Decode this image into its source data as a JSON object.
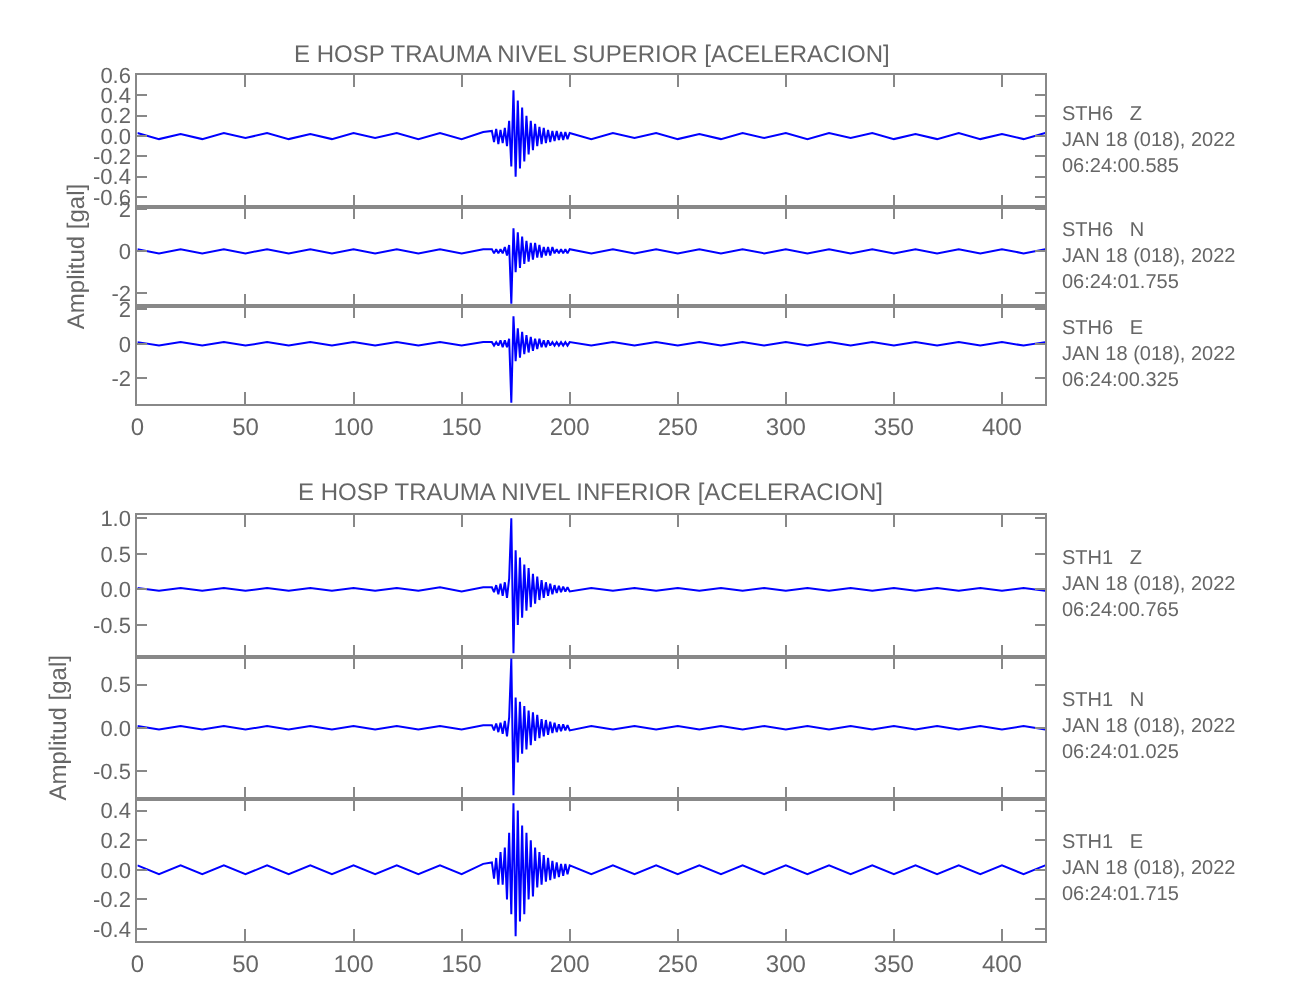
{
  "chart_data": [
    {
      "type": "line",
      "title": "E HOSP TRAUMA NIVEL SUPERIOR [ACELERACION]",
      "color": "#0000ff",
      "marker": "none",
      "line_style": "solid",
      "grid": false,
      "tick_labels": "y",
      "annotations": [
        "STH6   Z\nJAN 18 (018), 2022\n06:24:00.585"
      ],
      "xlim": [
        0,
        420
      ],
      "xticks": [
        0,
        50,
        100,
        150,
        200,
        250,
        300,
        350,
        400
      ],
      "ylim": [
        -0.7,
        0.6
      ],
      "yticks": [
        {
          "value": -0.6,
          "label": "-0.6"
        },
        {
          "value": -0.4,
          "label": "-0.4"
        },
        {
          "value": -0.2,
          "label": "-0.2"
        },
        {
          "value": 0,
          "label": "0.0"
        },
        {
          "value": 0.2,
          "label": "0.2"
        },
        {
          "value": 0.4,
          "label": "0.4"
        },
        {
          "value": 0.6,
          "label": "0.6"
        }
      ],
      "x": [
        0,
        10,
        20,
        30,
        40,
        50,
        60,
        70,
        80,
        90,
        100,
        110,
        120,
        130,
        140,
        150,
        160,
        164,
        165,
        166,
        167,
        168,
        169,
        170,
        171,
        172,
        173,
        174,
        175,
        176,
        177,
        178,
        179,
        180,
        181,
        182,
        183,
        184,
        185,
        186,
        187,
        188,
        189,
        190,
        191,
        192,
        193,
        194,
        195,
        196,
        197,
        198,
        199,
        200,
        210,
        220,
        230,
        240,
        250,
        260,
        270,
        280,
        290,
        300,
        310,
        320,
        330,
        340,
        350,
        360,
        370,
        380,
        390,
        400,
        410,
        420
      ],
      "values": [
        0.03,
        -0.03,
        0.02,
        -0.03,
        0.03,
        -0.02,
        0.03,
        -0.03,
        0.02,
        -0.03,
        0.03,
        -0.02,
        0.03,
        -0.03,
        0.03,
        -0.03,
        0.04,
        0.05,
        -0.06,
        0.07,
        -0.08,
        0.06,
        -0.07,
        0.08,
        -0.1,
        0.15,
        -0.3,
        0.45,
        -0.4,
        0.35,
        -0.32,
        0.28,
        -0.25,
        0.2,
        -0.18,
        0.15,
        -0.14,
        0.12,
        -0.1,
        0.09,
        -0.08,
        0.08,
        -0.07,
        0.06,
        -0.06,
        0.05,
        -0.05,
        0.05,
        -0.04,
        0.04,
        -0.04,
        0.04,
        -0.03,
        0.03,
        -0.03,
        0.03,
        -0.02,
        0.03,
        -0.03,
        0.02,
        -0.03,
        0.03,
        -0.02,
        0.03,
        -0.03,
        0.03,
        -0.02,
        0.03,
        -0.03,
        0.02,
        -0.03,
        0.03,
        -0.03,
        0.02,
        -0.03,
        0.03
      ]
    },
    {
      "type": "line",
      "ylabel": "Amplitud [gal]",
      "color": "#0000ff",
      "marker": "none",
      "line_style": "solid",
      "grid": false,
      "tick_labels": "y",
      "annotations": [
        "STH6   N\nJAN 18 (018), 2022\n06:24:01.755"
      ],
      "xlim": [
        0,
        420
      ],
      "xticks": [
        0,
        50,
        100,
        150,
        200,
        250,
        300,
        350,
        400
      ],
      "ylim": [
        -2.6,
        2.1
      ],
      "yticks": [
        -2,
        0,
        2
      ],
      "x": [
        0,
        10,
        20,
        30,
        40,
        50,
        60,
        70,
        80,
        90,
        100,
        110,
        120,
        130,
        140,
        150,
        160,
        164,
        165,
        166,
        167,
        168,
        169,
        170,
        171,
        172,
        173,
        174,
        175,
        176,
        177,
        178,
        179,
        180,
        181,
        182,
        183,
        184,
        185,
        186,
        187,
        188,
        189,
        190,
        191,
        192,
        193,
        194,
        195,
        196,
        197,
        198,
        199,
        200,
        210,
        220,
        230,
        240,
        250,
        260,
        270,
        280,
        290,
        300,
        310,
        320,
        330,
        340,
        350,
        360,
        370,
        380,
        390,
        400,
        410,
        420
      ],
      "values": [
        0.1,
        -0.1,
        0.1,
        -0.1,
        0.1,
        -0.1,
        0.1,
        -0.1,
        0.1,
        -0.1,
        0.1,
        -0.1,
        0.1,
        -0.1,
        0.1,
        -0.1,
        0.1,
        0.1,
        -0.1,
        0.1,
        -0.1,
        0.1,
        -0.1,
        0.2,
        -0.2,
        0.3,
        -2.5,
        1.1,
        -1.0,
        0.9,
        -0.8,
        0.7,
        -0.6,
        0.5,
        -0.5,
        0.4,
        -0.4,
        0.4,
        -0.3,
        0.3,
        -0.3,
        0.2,
        -0.2,
        0.2,
        -0.2,
        0.2,
        -0.1,
        0.1,
        -0.1,
        0.1,
        -0.1,
        0.1,
        -0.1,
        0.1,
        -0.1,
        0.1,
        -0.1,
        0.1,
        -0.1,
        0.1,
        -0.1,
        0.1,
        -0.1,
        0.1,
        -0.1,
        0.1,
        -0.1,
        0.1,
        -0.1,
        0.1,
        -0.1,
        0.1,
        -0.1,
        0.1,
        -0.1,
        0.1
      ]
    },
    {
      "type": "line",
      "color": "#0000ff",
      "marker": "none",
      "line_style": "solid",
      "grid": false,
      "annotations": [
        "STH6   E\nJAN 18 (018), 2022\n06:24:00.325"
      ],
      "xlim": [
        0,
        420
      ],
      "xticks": [
        0,
        50,
        100,
        150,
        200,
        250,
        300,
        350,
        400
      ],
      "ylim": [
        -3.5,
        2.2
      ],
      "yticks": [
        -2,
        0,
        2
      ],
      "x": [
        0,
        10,
        20,
        30,
        40,
        50,
        60,
        70,
        80,
        90,
        100,
        110,
        120,
        130,
        140,
        150,
        160,
        164,
        165,
        166,
        167,
        168,
        169,
        170,
        171,
        172,
        173,
        174,
        175,
        176,
        177,
        178,
        179,
        180,
        181,
        182,
        183,
        184,
        185,
        186,
        187,
        188,
        189,
        190,
        191,
        192,
        193,
        194,
        195,
        196,
        197,
        198,
        199,
        200,
        210,
        220,
        230,
        240,
        250,
        260,
        270,
        280,
        290,
        300,
        310,
        320,
        330,
        340,
        350,
        360,
        370,
        380,
        390,
        400,
        410,
        420
      ],
      "values": [
        0.1,
        -0.1,
        0.1,
        -0.1,
        0.1,
        -0.1,
        0.1,
        -0.1,
        0.1,
        -0.1,
        0.1,
        -0.1,
        0.1,
        -0.1,
        0.1,
        -0.1,
        0.1,
        0.1,
        -0.1,
        0.1,
        -0.1,
        0.2,
        -0.2,
        0.2,
        -0.2,
        0.3,
        -3.4,
        1.6,
        -1.0,
        0.9,
        -0.8,
        0.7,
        -0.6,
        0.5,
        -0.5,
        0.4,
        -0.4,
        0.3,
        -0.3,
        0.3,
        -0.2,
        0.2,
        -0.2,
        0.2,
        -0.1,
        0.1,
        -0.1,
        0.1,
        -0.1,
        0.1,
        -0.1,
        0.1,
        -0.1,
        0.1,
        -0.1,
        0.1,
        -0.1,
        0.1,
        -0.1,
        0.1,
        -0.1,
        0.1,
        -0.1,
        0.1,
        -0.1,
        0.1,
        -0.1,
        0.1,
        -0.1,
        0.1,
        -0.1,
        0.1,
        -0.1,
        0.1,
        -0.1,
        0.1
      ]
    },
    {
      "type": "line",
      "title": "E HOSP TRAUMA NIVEL INFERIOR [ACELERACION]",
      "color": "#0000ff",
      "marker": "none",
      "line_style": "solid",
      "grid": false,
      "tick_labels": "y",
      "annotations": [
        "STH1   Z\nJAN 18 (018), 2022\n06:24:00.765"
      ],
      "xlim": [
        0,
        420
      ],
      "xticks": [
        0,
        50,
        100,
        150,
        200,
        250,
        300,
        350,
        400
      ],
      "ylim": [
        -0.95,
        1.05
      ],
      "yticks": [
        -0.5,
        {
          "value": 0,
          "label": "0.0"
        },
        0.5,
        {
          "value": 1,
          "label": "1.0"
        }
      ],
      "x": [
        0,
        10,
        20,
        30,
        40,
        50,
        60,
        70,
        80,
        90,
        100,
        110,
        120,
        130,
        140,
        150,
        160,
        164,
        165,
        166,
        167,
        168,
        169,
        170,
        171,
        172,
        173,
        174,
        175,
        176,
        177,
        178,
        179,
        180,
        181,
        182,
        183,
        184,
        185,
        186,
        187,
        188,
        189,
        190,
        191,
        192,
        193,
        194,
        195,
        196,
        197,
        198,
        199,
        200,
        210,
        220,
        230,
        240,
        250,
        260,
        270,
        280,
        290,
        300,
        310,
        320,
        330,
        340,
        350,
        360,
        370,
        380,
        390,
        400,
        410,
        420
      ],
      "values": [
        0.02,
        -0.02,
        0.02,
        -0.02,
        0.02,
        -0.02,
        0.02,
        -0.02,
        0.02,
        -0.02,
        0.02,
        -0.02,
        0.02,
        -0.02,
        0.03,
        -0.03,
        0.03,
        0.03,
        -0.04,
        0.06,
        -0.07,
        0.08,
        -0.09,
        0.1,
        -0.12,
        0.15,
        1.0,
        -0.9,
        0.55,
        -0.5,
        0.45,
        -0.4,
        0.35,
        -0.3,
        0.3,
        -0.25,
        0.22,
        -0.2,
        0.18,
        -0.15,
        0.13,
        -0.12,
        0.1,
        -0.09,
        0.08,
        -0.07,
        0.06,
        -0.05,
        0.05,
        -0.04,
        0.04,
        -0.03,
        0.03,
        -0.03,
        0.02,
        -0.02,
        0.02,
        -0.02,
        0.02,
        -0.02,
        0.02,
        -0.02,
        0.02,
        -0.02,
        0.02,
        -0.02,
        0.02,
        -0.02,
        0.02,
        -0.02,
        0.02,
        -0.02,
        0.02,
        -0.02,
        0.02,
        -0.02
      ]
    },
    {
      "type": "line",
      "ylabel": "Amplitud [gal]",
      "color": "#0000ff",
      "marker": "none",
      "line_style": "solid",
      "grid": false,
      "tick_labels": "y",
      "annotations": [
        "STH1   N\nJAN 18 (018), 2022\n06:24:01.025"
      ],
      "xlim": [
        0,
        420
      ],
      "xticks": [
        0,
        50,
        100,
        150,
        200,
        250,
        300,
        350,
        400
      ],
      "ylim": [
        -0.82,
        0.82
      ],
      "yticks": [
        -0.5,
        {
          "value": 0,
          "label": "0.0"
        },
        0.5
      ],
      "x": [
        0,
        10,
        20,
        30,
        40,
        50,
        60,
        70,
        80,
        90,
        100,
        110,
        120,
        130,
        140,
        150,
        160,
        164,
        165,
        166,
        167,
        168,
        169,
        170,
        171,
        172,
        173,
        174,
        175,
        176,
        177,
        178,
        179,
        180,
        181,
        182,
        183,
        184,
        185,
        186,
        187,
        188,
        189,
        190,
        191,
        192,
        193,
        194,
        195,
        196,
        197,
        198,
        199,
        200,
        210,
        220,
        230,
        240,
        250,
        260,
        270,
        280,
        290,
        300,
        310,
        320,
        330,
        340,
        350,
        360,
        370,
        380,
        390,
        400,
        410,
        420
      ],
      "values": [
        0.02,
        -0.02,
        0.02,
        -0.02,
        0.02,
        -0.02,
        0.02,
        -0.02,
        0.02,
        -0.02,
        0.02,
        -0.02,
        0.02,
        -0.02,
        0.02,
        -0.02,
        0.03,
        0.03,
        -0.03,
        0.05,
        -0.05,
        0.06,
        -0.07,
        0.08,
        -0.1,
        0.12,
        0.8,
        -0.78,
        0.35,
        -0.4,
        0.3,
        -0.3,
        0.25,
        -0.25,
        0.2,
        -0.2,
        0.18,
        -0.15,
        0.15,
        -0.12,
        0.1,
        -0.1,
        0.09,
        -0.08,
        0.07,
        -0.06,
        0.06,
        -0.05,
        0.04,
        -0.04,
        0.04,
        -0.03,
        0.03,
        -0.03,
        0.02,
        -0.02,
        0.02,
        -0.02,
        0.02,
        -0.02,
        0.02,
        -0.02,
        0.02,
        -0.02,
        0.02,
        -0.02,
        0.02,
        -0.02,
        0.02,
        -0.02,
        0.02,
        -0.02,
        0.02,
        -0.02,
        0.02,
        -0.02
      ]
    },
    {
      "type": "line",
      "color": "#0000ff",
      "marker": "none",
      "line_style": "solid",
      "grid": false,
      "annotations": [
        "STH1   E\nJAN 18 (018), 2022\n06:24:01.715"
      ],
      "xlim": [
        0,
        420
      ],
      "xticks": [
        0,
        50,
        100,
        150,
        200,
        250,
        300,
        350,
        400
      ],
      "ylim": [
        -0.48,
        0.48
      ],
      "yticks": [
        -0.4,
        -0.2,
        {
          "value": 0,
          "label": "0.0"
        },
        0.2,
        0.4
      ],
      "x": [
        0,
        10,
        20,
        30,
        40,
        50,
        60,
        70,
        80,
        90,
        100,
        110,
        120,
        130,
        140,
        150,
        160,
        164,
        165,
        166,
        167,
        168,
        169,
        170,
        171,
        172,
        173,
        174,
        175,
        176,
        177,
        178,
        179,
        180,
        181,
        182,
        183,
        184,
        185,
        186,
        187,
        188,
        189,
        190,
        191,
        192,
        193,
        194,
        195,
        196,
        197,
        198,
        199,
        200,
        210,
        220,
        230,
        240,
        250,
        260,
        270,
        280,
        290,
        300,
        310,
        320,
        330,
        340,
        350,
        360,
        370,
        380,
        390,
        400,
        410,
        420
      ],
      "values": [
        0.03,
        -0.03,
        0.03,
        -0.03,
        0.03,
        -0.03,
        0.03,
        -0.03,
        0.03,
        -0.03,
        0.03,
        -0.03,
        0.03,
        -0.03,
        0.03,
        -0.03,
        0.04,
        0.05,
        -0.06,
        0.08,
        -0.1,
        0.12,
        -0.1,
        0.15,
        -0.2,
        0.25,
        -0.3,
        0.45,
        -0.45,
        0.4,
        -0.35,
        0.3,
        -0.3,
        0.25,
        -0.2,
        0.2,
        -0.18,
        0.15,
        -0.12,
        0.12,
        -0.1,
        0.1,
        -0.08,
        0.08,
        -0.07,
        0.06,
        -0.06,
        0.05,
        -0.05,
        0.04,
        -0.04,
        0.04,
        -0.03,
        0.03,
        -0.03,
        0.03,
        -0.03,
        0.03,
        -0.03,
        0.03,
        -0.03,
        0.03,
        -0.03,
        0.03,
        -0.03,
        0.03,
        -0.03,
        0.03,
        -0.03,
        0.03,
        -0.03,
        0.03,
        -0.03,
        0.03,
        -0.03,
        0.03
      ]
    }
  ]
}
